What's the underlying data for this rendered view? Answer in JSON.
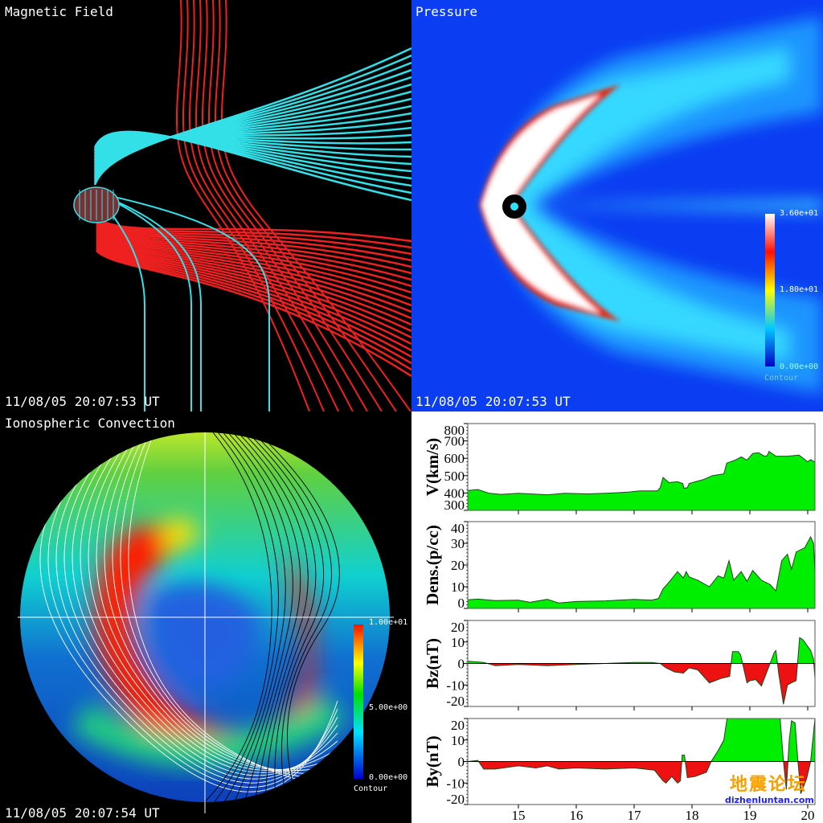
{
  "magnetic_panel": {
    "title": "Magnetic Field",
    "timestamp": "11/08/05 20:07:53 UT",
    "line_colors": [
      "#33e0e8",
      "#ee2020"
    ]
  },
  "pressure_panel": {
    "title": "Pressure",
    "timestamp": "11/08/05 20:07:53 UT",
    "colorbar": {
      "max": "3.60e+01",
      "mid": "1.80e+01",
      "min": "0.00e+00",
      "label": "Contour"
    }
  },
  "ionosphere_panel": {
    "title": "Ionospheric Convection",
    "timestamp": "11/08/05 20:07:54 UT",
    "colorbar": {
      "max": "1.00e+01",
      "mid": "5.00e+00",
      "min": "0.00e+00",
      "label": "Contour"
    }
  },
  "watermark": {
    "chinese": "地震论坛",
    "url": "dizhenluntan.com"
  },
  "colors": {
    "positive": "#00ee00",
    "negative": "#ee1111"
  },
  "chart_data": [
    {
      "type": "area",
      "ylabel": "V(km/s)",
      "ylim": [
        300,
        800
      ],
      "yticks": [
        "300",
        "400",
        "500",
        "600",
        "700",
        "800"
      ],
      "baseline": 300,
      "x": [
        14.125,
        14.3,
        14.5,
        14.7,
        15,
        15.5,
        15.8,
        16.2,
        16.5,
        16.9,
        17.1,
        17.4,
        17.45,
        17.5,
        17.6,
        17.75,
        17.84,
        17.86,
        17.92,
        17.95,
        18.2,
        18.35,
        18.55,
        18.6,
        18.75,
        18.85,
        18.95,
        19.05,
        19.15,
        19.25,
        19.3,
        19.33,
        19.45,
        19.65,
        19.85,
        20.0,
        20.05,
        20.125
      ],
      "values": [
        415,
        420,
        398,
        392,
        398,
        390,
        398,
        395,
        398,
        405,
        412,
        412,
        430,
        490,
        460,
        465,
        455,
        428,
        430,
        455,
        478,
        500,
        510,
        572,
        590,
        608,
        590,
        628,
        632,
        612,
        615,
        640,
        612,
        612,
        618,
        580,
        592,
        578
      ]
    },
    {
      "type": "area",
      "ylabel": "Dens.(p/cc)",
      "ylim": [
        0,
        40
      ],
      "yticks": [
        "0",
        "10",
        "20",
        "30",
        "40"
      ],
      "baseline": 0,
      "x": [
        14.125,
        14.3,
        14.6,
        15,
        15.2,
        15.5,
        15.7,
        16,
        16.5,
        17,
        17.3,
        17.42,
        17.5,
        17.6,
        17.75,
        17.85,
        17.9,
        17.95,
        18.1,
        18.3,
        18.45,
        18.55,
        18.64,
        18.72,
        18.85,
        18.95,
        19.0,
        19.05,
        19.2,
        19.35,
        19.45,
        19.55,
        19.65,
        19.72,
        19.8,
        19.95,
        20.05,
        20.1,
        20.125
      ],
      "values": [
        4,
        4.3,
        3.6,
        3.8,
        2.8,
        4.2,
        2.5,
        3.2,
        3.5,
        4.2,
        3.8,
        4.5,
        9,
        12,
        17,
        14,
        17,
        14.5,
        13,
        10,
        15,
        14,
        22,
        13,
        17,
        12.5,
        15,
        17.5,
        13,
        11,
        8,
        22,
        25,
        18,
        26,
        28,
        33,
        30,
        17
      ]
    },
    {
      "type": "area",
      "ylabel": "Bz(nT)",
      "ylim": [
        -20,
        20
      ],
      "yticks": [
        "-20",
        "-10",
        "0",
        "10",
        "20"
      ],
      "baseline": 0,
      "x": [
        14.125,
        14.4,
        14.6,
        15,
        15.5,
        16,
        16.5,
        17,
        17.3,
        17.45,
        17.55,
        17.7,
        17.85,
        17.95,
        18.1,
        18.3,
        18.5,
        18.65,
        18.7,
        18.8,
        18.84,
        18.95,
        19.0,
        19.1,
        19.2,
        19.35,
        19.42,
        19.45,
        19.5,
        19.58,
        19.65,
        19.72,
        19.8,
        19.86,
        19.92,
        20.05,
        20.1,
        20.125
      ],
      "values": [
        1,
        0.5,
        -1,
        -0.5,
        -1,
        -0.5,
        0,
        0.5,
        0.5,
        0,
        -2,
        -4,
        -4.5,
        -2,
        -3,
        -9,
        -7,
        -6,
        5.5,
        5.5,
        4,
        -9,
        -8,
        -7.5,
        -10.5,
        0,
        5,
        6,
        -5,
        -19,
        -10,
        -9,
        -8,
        12,
        11,
        6,
        2,
        -7
      ]
    },
    {
      "type": "area",
      "ylabel": "By(nT)",
      "ylim": [
        -20,
        20
      ],
      "yticks": [
        "-20",
        "-10",
        "0",
        "10",
        "20"
      ],
      "baseline": 0,
      "x": [
        14.125,
        14.3,
        14.4,
        14.6,
        15,
        15.3,
        15.5,
        15.7,
        16,
        16.5,
        17,
        17.35,
        17.5,
        17.55,
        17.65,
        17.75,
        17.8,
        17.83,
        17.87,
        17.92,
        18.05,
        18.25,
        18.33,
        18.45,
        18.55,
        18.65,
        19.5,
        19.58,
        19.63,
        19.68,
        19.72,
        19.78,
        19.83,
        19.88,
        19.98,
        20.05,
        20.125
      ],
      "values": [
        0,
        0.5,
        -3.5,
        -3.5,
        -2,
        -3,
        -2,
        -3.5,
        -3,
        -3.5,
        -3,
        -4,
        -9,
        -10,
        -7,
        -10,
        -9,
        3,
        3,
        -7.5,
        -7,
        -5,
        0,
        5,
        10,
        28,
        28,
        0,
        -13,
        10,
        19,
        18,
        0,
        -15,
        -8,
        0,
        20
      ]
    }
  ],
  "x_axis": {
    "ticks": [
      "15",
      "16",
      "17",
      "18",
      "19",
      "20"
    ],
    "xlim": [
      14.125,
      20.125
    ]
  }
}
